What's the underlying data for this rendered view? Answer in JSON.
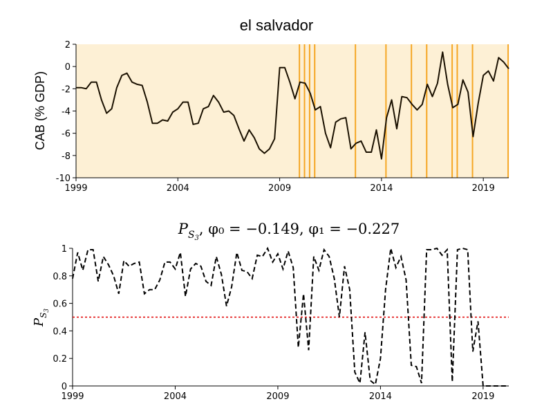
{
  "chart_data": [
    {
      "type": "line",
      "title": "el salvador",
      "xlabel": "",
      "ylabel": "CAB (% GDP)",
      "xlim": [
        1999,
        2020.25
      ],
      "ylim": [
        -10,
        2
      ],
      "xticks": [
        1999,
        2004,
        2009,
        2014,
        2019
      ],
      "yticks": [
        -10,
        -8,
        -6,
        -4,
        -2,
        0,
        2
      ],
      "background_color": "#fdf0d5",
      "grid": false,
      "vlines_color": "#f5a623",
      "vlines_x": [
        2009.97,
        2010.22,
        2010.47,
        2010.72,
        2012.72,
        2014.22,
        2015.47,
        2016.22,
        2017.47,
        2017.72,
        2018.47,
        2020.22
      ],
      "series": [
        {
          "color": "#1a1000",
          "x": [
            1999.0,
            1999.25,
            1999.5,
            1999.75,
            2000.0,
            2000.25,
            2000.5,
            2000.75,
            2001.0,
            2001.25,
            2001.5,
            2001.75,
            2002.0,
            2002.25,
            2002.5,
            2002.75,
            2003.0,
            2003.25,
            2003.5,
            2003.75,
            2004.0,
            2004.25,
            2004.5,
            2004.75,
            2005.0,
            2005.25,
            2005.5,
            2005.75,
            2006.0,
            2006.25,
            2006.5,
            2006.75,
            2007.0,
            2007.25,
            2007.5,
            2007.75,
            2008.0,
            2008.25,
            2008.5,
            2008.75,
            2009.0,
            2009.25,
            2009.5,
            2009.75,
            2010.0,
            2010.25,
            2010.5,
            2010.75,
            2011.0,
            2011.25,
            2011.5,
            2011.75,
            2012.0,
            2012.25,
            2012.5,
            2012.75,
            2013.0,
            2013.25,
            2013.5,
            2013.75,
            2014.0,
            2014.25,
            2014.5,
            2014.75,
            2015.0,
            2015.25,
            2015.5,
            2015.75,
            2016.0,
            2016.25,
            2016.5,
            2016.75,
            2017.0,
            2017.25,
            2017.5,
            2017.75,
            2018.0,
            2018.25,
            2018.5,
            2018.75,
            2019.0,
            2019.25,
            2019.5,
            2019.75,
            2020.0,
            2020.25
          ],
          "y": [
            -1.9,
            -1.9,
            -2.0,
            -1.4,
            -1.4,
            -3.0,
            -4.2,
            -3.8,
            -1.9,
            -0.8,
            -0.6,
            -1.4,
            -1.6,
            -1.7,
            -3.2,
            -5.1,
            -5.1,
            -4.8,
            -4.9,
            -4.1,
            -3.8,
            -3.2,
            -3.2,
            -5.2,
            -5.1,
            -3.8,
            -3.6,
            -2.6,
            -3.2,
            -4.1,
            -4.0,
            -4.4,
            -5.6,
            -6.7,
            -5.7,
            -6.4,
            -7.4,
            -7.8,
            -7.4,
            -6.5,
            -0.1,
            -0.1,
            -1.4,
            -2.9,
            -1.4,
            -1.5,
            -2.4,
            -3.9,
            -3.6,
            -6.0,
            -7.3,
            -5.0,
            -4.7,
            -4.6,
            -7.4,
            -6.9,
            -6.7,
            -7.7,
            -7.7,
            -5.7,
            -8.3,
            -4.6,
            -3.0,
            -5.6,
            -2.7,
            -2.8,
            -3.4,
            -3.9,
            -3.4,
            -1.6,
            -2.7,
            -1.5,
            1.3,
            -1.6,
            -3.7,
            -3.4,
            -1.2,
            -2.3,
            -6.3,
            -3.3,
            -0.8,
            -0.4,
            -1.3,
            0.8,
            0.4,
            -0.2
          ]
        }
      ]
    },
    {
      "type": "line",
      "title": "P_S3, φ0 = -0.149, φ1 = -0.227",
      "title_parts": {
        "p": "P",
        "sub_s": "S",
        "sub_3": "3",
        "rest": ", φ₀ = −0.149, φ₁ = −0.227"
      },
      "xlabel": "",
      "ylabel": "P_S3",
      "ylabel_parts": {
        "p": "P",
        "sub_s": "S",
        "sub_3": "3"
      },
      "xlim": [
        1999,
        2020.25
      ],
      "ylim": [
        0,
        1
      ],
      "xticks": [
        1999,
        2004,
        2009,
        2014,
        2019
      ],
      "yticks": [
        0,
        0.2,
        0.4,
        0.6,
        0.8,
        1
      ],
      "ytick_labels": [
        "0",
        "0.2",
        "0.4",
        "0.6",
        "0.8",
        "1"
      ],
      "grid": false,
      "threshold": {
        "y": 0.5,
        "color": "#e00000"
      },
      "series": [
        {
          "color": "#000000",
          "dashed": true,
          "x": [
            1999.0,
            1999.25,
            1999.5,
            1999.75,
            2000.0,
            2000.25,
            2000.5,
            2000.75,
            2001.0,
            2001.25,
            2001.5,
            2001.75,
            2002.0,
            2002.25,
            2002.5,
            2002.75,
            2003.0,
            2003.25,
            2003.5,
            2003.75,
            2004.0,
            2004.25,
            2004.5,
            2004.75,
            2005.0,
            2005.25,
            2005.5,
            2005.75,
            2006.0,
            2006.25,
            2006.5,
            2006.75,
            2007.0,
            2007.25,
            2007.5,
            2007.75,
            2008.0,
            2008.25,
            2008.5,
            2008.75,
            2009.0,
            2009.25,
            2009.5,
            2009.75,
            2010.0,
            2010.25,
            2010.5,
            2010.75,
            2011.0,
            2011.25,
            2011.5,
            2011.75,
            2012.0,
            2012.25,
            2012.5,
            2012.75,
            2013.0,
            2013.25,
            2013.5,
            2013.75,
            2014.0,
            2014.25,
            2014.5,
            2014.75,
            2015.0,
            2015.25,
            2015.5,
            2015.75,
            2016.0,
            2016.25,
            2016.5,
            2016.75,
            2017.0,
            2017.25,
            2017.5,
            2017.75,
            2018.0,
            2018.25,
            2018.5,
            2018.75,
            2019.0,
            2019.25,
            2019.5,
            2019.75,
            2020.0,
            2020.25
          ],
          "y": [
            0.78,
            0.97,
            0.84,
            0.99,
            0.99,
            0.76,
            0.94,
            0.88,
            0.8,
            0.67,
            0.91,
            0.87,
            0.89,
            0.9,
            0.67,
            0.7,
            0.7,
            0.77,
            0.9,
            0.9,
            0.85,
            0.97,
            0.65,
            0.85,
            0.89,
            0.87,
            0.76,
            0.73,
            0.94,
            0.81,
            0.58,
            0.72,
            0.97,
            0.84,
            0.83,
            0.78,
            0.95,
            0.94,
            1.0,
            0.9,
            0.96,
            0.85,
            0.98,
            0.86,
            0.28,
            0.67,
            0.26,
            0.94,
            0.84,
            0.99,
            0.94,
            0.78,
            0.5,
            0.87,
            0.7,
            0.1,
            0.02,
            0.39,
            0.04,
            0.01,
            0.2,
            0.7,
            1.0,
            0.86,
            0.94,
            0.77,
            0.15,
            0.14,
            0.02,
            0.99,
            0.99,
            1.0,
            0.95,
            0.99,
            0.03,
            0.99,
            1.0,
            0.99,
            0.25,
            0.47,
            0.0,
            0.0,
            0.0,
            0.0,
            0.0,
            0.0
          ]
        }
      ]
    }
  ]
}
